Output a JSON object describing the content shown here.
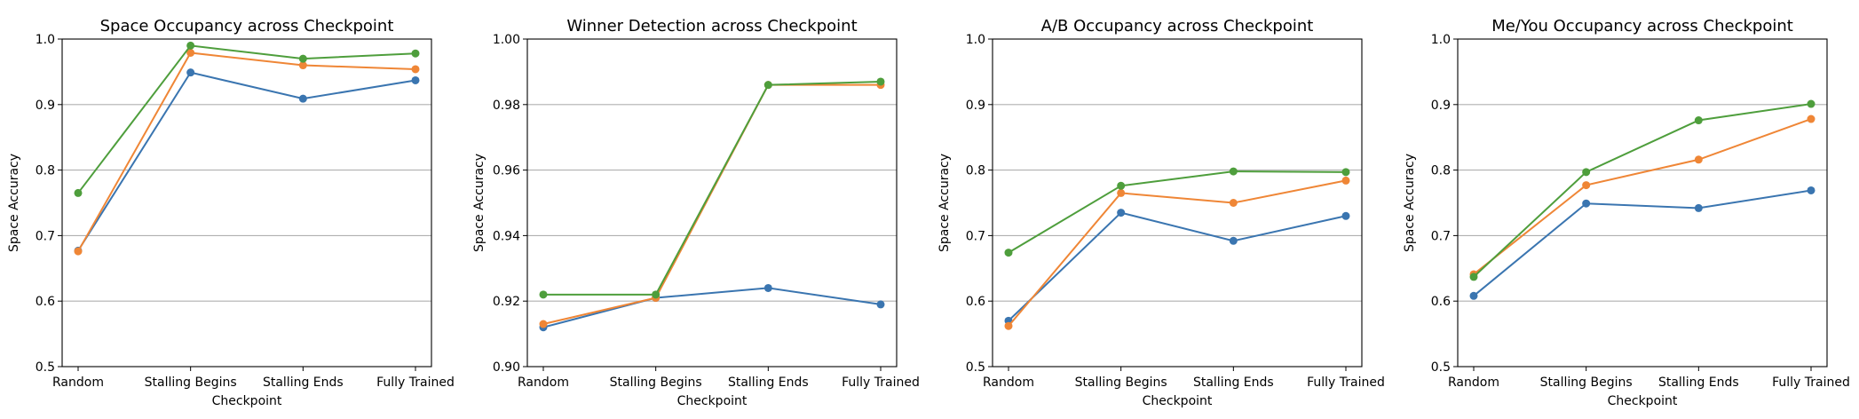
{
  "colors": {
    "series": [
      "#3a75b0",
      "#ef8636",
      "#4e9e3c"
    ],
    "grid": "#b0b0b0"
  },
  "chart_data": [
    {
      "type": "line",
      "title": "Space Occupancy across Checkpoint",
      "xlabel": "Checkpoint",
      "ylabel": "Space Accuracy",
      "categories": [
        "Random",
        "Stalling Begins",
        "Stalling Ends",
        "Fully Trained"
      ],
      "ylim": [
        0.5,
        1.0
      ],
      "yticks": [
        "0.5",
        "0.6",
        "0.7",
        "0.8",
        "0.9",
        "1.0"
      ],
      "grid": "horizontal",
      "series": [
        {
          "values": [
            0.677,
            0.949,
            0.909,
            0.937
          ]
        },
        {
          "values": [
            0.676,
            0.979,
            0.96,
            0.954
          ]
        },
        {
          "values": [
            0.765,
            0.99,
            0.97,
            0.978
          ]
        }
      ]
    },
    {
      "type": "line",
      "title": "Winner Detection across Checkpoint",
      "xlabel": "Checkpoint",
      "ylabel": "Space Accuracy",
      "categories": [
        "Random",
        "Stalling Begins",
        "Stalling Ends",
        "Fully Trained"
      ],
      "ylim": [
        0.9,
        1.0
      ],
      "yticks": [
        "0.90",
        "0.92",
        "0.94",
        "0.96",
        "0.98",
        "1.00"
      ],
      "grid": "horizontal",
      "series": [
        {
          "values": [
            0.912,
            0.921,
            0.924,
            0.919
          ]
        },
        {
          "values": [
            0.913,
            0.921,
            0.986,
            0.986
          ]
        },
        {
          "values": [
            0.922,
            0.922,
            0.986,
            0.987
          ]
        }
      ]
    },
    {
      "type": "line",
      "title": "A/B Occupancy across Checkpoint",
      "xlabel": "Checkpoint",
      "ylabel": "Space Accuracy",
      "categories": [
        "Random",
        "Stalling Begins",
        "Stalling Ends",
        "Fully Trained"
      ],
      "ylim": [
        0.5,
        1.0
      ],
      "yticks": [
        "0.5",
        "0.6",
        "0.7",
        "0.8",
        "0.9",
        "1.0"
      ],
      "grid": "horizontal",
      "series": [
        {
          "values": [
            0.57,
            0.735,
            0.692,
            0.73
          ]
        },
        {
          "values": [
            0.562,
            0.765,
            0.75,
            0.784
          ]
        },
        {
          "values": [
            0.674,
            0.776,
            0.798,
            0.797
          ]
        }
      ]
    },
    {
      "type": "line",
      "title": "Me/You Occupancy across Checkpoint",
      "xlabel": "Checkpoint",
      "ylabel": "Space Accuracy",
      "categories": [
        "Random",
        "Stalling Begins",
        "Stalling Ends",
        "Fully Trained"
      ],
      "ylim": [
        0.5,
        1.0
      ],
      "yticks": [
        "0.5",
        "0.6",
        "0.7",
        "0.8",
        "0.9",
        "1.0"
      ],
      "grid": "horizontal",
      "series": [
        {
          "values": [
            0.608,
            0.749,
            0.742,
            0.769
          ]
        },
        {
          "values": [
            0.641,
            0.777,
            0.816,
            0.878
          ]
        },
        {
          "values": [
            0.637,
            0.797,
            0.876,
            0.901
          ]
        }
      ]
    }
  ]
}
